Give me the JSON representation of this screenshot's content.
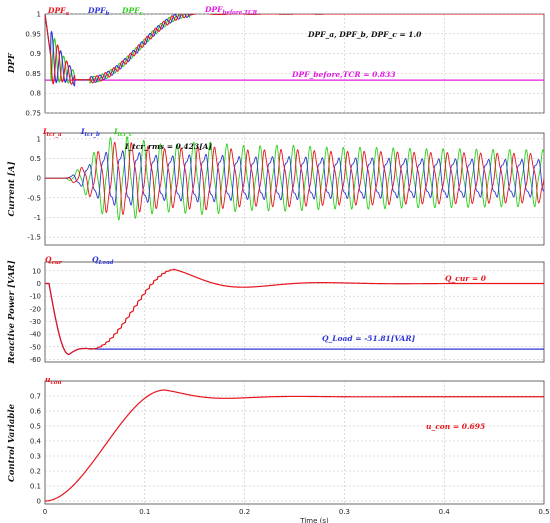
{
  "chart_data": [
    {
      "type": "line",
      "ylabel": "DPF",
      "ylim": [
        0.75,
        1.0
      ],
      "yticks": [
        0.75,
        0.8,
        0.85,
        0.9,
        0.95,
        1
      ],
      "ytick_labels": [
        "0.75",
        "0.8",
        "0.85",
        "0.9",
        "0.95",
        "1"
      ],
      "xlim": [
        0,
        0.5
      ],
      "series": [
        {
          "name": "DPF_a",
          "color": "#e8141c"
        },
        {
          "name": "DPF_b",
          "color": "#2e35d8"
        },
        {
          "name": "DPF_c",
          "color": "#2fd11b"
        },
        {
          "name": "DPF_before,TCR",
          "color": "#e21be0",
          "value": 0.833
        }
      ],
      "legend": [
        {
          "main": "DPF",
          "sub": "a",
          "color": "#e8141c"
        },
        {
          "main": "DPF",
          "sub": "b",
          "color": "#2e35d8"
        },
        {
          "main": "DPF",
          "sub": "c",
          "color": "#2fd11b"
        },
        {
          "main": "DPF",
          "sub": "before,TCR",
          "color": "#e21be0"
        }
      ],
      "annotations": [
        {
          "text": "DPF_a, DPF_b, DPF_c = 1.0",
          "color": "#111111"
        },
        {
          "text": "DPF_before,TCR = 0.833",
          "color": "#e21be0"
        }
      ]
    },
    {
      "type": "line",
      "ylabel": "Current [A]",
      "ylim": [
        -1.7,
        1.15
      ],
      "yticks": [
        -1.5,
        -1,
        -0.5,
        0,
        0.5,
        1
      ],
      "ytick_labels": [
        "-1.5",
        "-1",
        "-0.5",
        "0",
        "0.5",
        "1"
      ],
      "xlim": [
        0,
        0.5
      ],
      "frequency_hz": 60,
      "settled_amplitude": 0.6,
      "series": [
        {
          "name": "I_tcr_a",
          "color": "#e8141c"
        },
        {
          "name": "I_tcr_b",
          "color": "#2e35d8"
        },
        {
          "name": "I_tcr_c",
          "color": "#2fd11b"
        }
      ],
      "legend": [
        {
          "main": "I",
          "sub": "tcr_a",
          "color": "#e8141c"
        },
        {
          "main": "I",
          "sub": "tcr_b",
          "color": "#2e35d8"
        },
        {
          "main": "I",
          "sub": "tcr_c",
          "color": "#2fd11b"
        }
      ],
      "annotations": [
        {
          "text": "I_tcr_rms = 0.423[A]",
          "color": "#111111",
          "value": 0.423
        }
      ]
    },
    {
      "type": "line",
      "ylabel": "Reactive Power [VAR]",
      "ylim": [
        -62,
        17
      ],
      "yticks": [
        -60,
        -50,
        -40,
        -30,
        -20,
        -10,
        0,
        10
      ],
      "ytick_labels": [
        "-60",
        "-50",
        "-40",
        "-30",
        "-20",
        "-10",
        "0",
        "10"
      ],
      "xlim": [
        0,
        0.5
      ],
      "series": [
        {
          "name": "Q_cur",
          "color": "#e8141c",
          "final": 0
        },
        {
          "name": "Q_Load",
          "color": "#2e35d8",
          "final": -51.81
        }
      ],
      "legend": [
        {
          "main": "Q",
          "sub": "cur",
          "color": "#e8141c"
        },
        {
          "main": "Q",
          "sub": "Load",
          "color": "#2e35d8"
        }
      ],
      "annotations": [
        {
          "text": "Q_cur = 0",
          "color": "#e8141c"
        },
        {
          "text": "Q_Load = -51.81[VAR]",
          "color": "#2e35d8"
        }
      ]
    },
    {
      "type": "line",
      "ylabel": "Control Variable",
      "ylim": [
        -0.02,
        0.8
      ],
      "yticks": [
        0,
        0.1,
        0.2,
        0.3,
        0.4,
        0.5,
        0.6,
        0.7
      ],
      "ytick_labels": [
        "0",
        "0.1",
        "0.2",
        "0.3",
        "0.4",
        "0.5",
        "0.6",
        "0.7"
      ],
      "xlim": [
        0,
        0.5
      ],
      "series": [
        {
          "name": "u_con",
          "color": "#e8141c",
          "final": 0.695
        }
      ],
      "legend": [
        {
          "main": "u",
          "sub": "con",
          "color": "#e8141c"
        }
      ],
      "annotations": [
        {
          "text": "u_con = 0.695",
          "color": "#e8141c"
        }
      ]
    }
  ],
  "x_axis": {
    "label": "Time (s)",
    "ticks": [
      0,
      0.1,
      0.2,
      0.3,
      0.4,
      0.5
    ],
    "tick_labels": [
      "0",
      "0.1",
      "0.2",
      "0.3",
      "0.4",
      "0.5"
    ]
  }
}
